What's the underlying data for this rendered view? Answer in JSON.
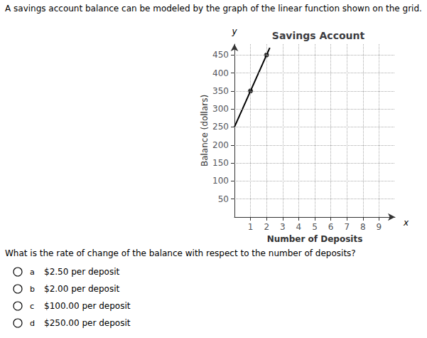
{
  "chart_data": {
    "type": "line",
    "title": "Savings Account",
    "xlabel": "Number of Deposits",
    "ylabel": "Balance (dollars)",
    "series": [
      {
        "type": "line",
        "x": [
          0.0,
          2.2
        ],
        "values": [
          250,
          470
        ],
        "color": "#000000",
        "marker": "none"
      },
      {
        "type": "scatter",
        "x": [
          1,
          2
        ],
        "values": [
          350,
          450
        ],
        "color": "#000000",
        "marker": "circle"
      }
    ],
    "xlim": [
      0,
      10
    ],
    "ylim": [
      0,
      480
    ],
    "xticks": [
      1,
      2,
      3,
      4,
      5,
      6,
      7,
      8,
      9
    ],
    "yticks": [
      50,
      100,
      150,
      200,
      250,
      300,
      350,
      400,
      450
    ],
    "grid": true,
    "annotations": [
      {
        "kind": "header",
        "text": "A savings account balance can be modeled by the graph of the linear function shown on the grid."
      },
      {
        "kind": "question",
        "text": "What is the rate of change of the balance with respect to the number of deposits?"
      },
      {
        "kind": "option",
        "letter": "a",
        "text": "$2.50 per deposit"
      },
      {
        "kind": "option",
        "letter": "b",
        "text": "$2.00 per deposit"
      },
      {
        "kind": "option",
        "letter": "c",
        "text": "$100.00 per deposit"
      },
      {
        "kind": "option",
        "letter": "d",
        "text": "$250.00 per deposit"
      },
      {
        "kind": "x_axis_end",
        "text": "x"
      },
      {
        "kind": "y_axis_end",
        "text": "y"
      }
    ]
  }
}
